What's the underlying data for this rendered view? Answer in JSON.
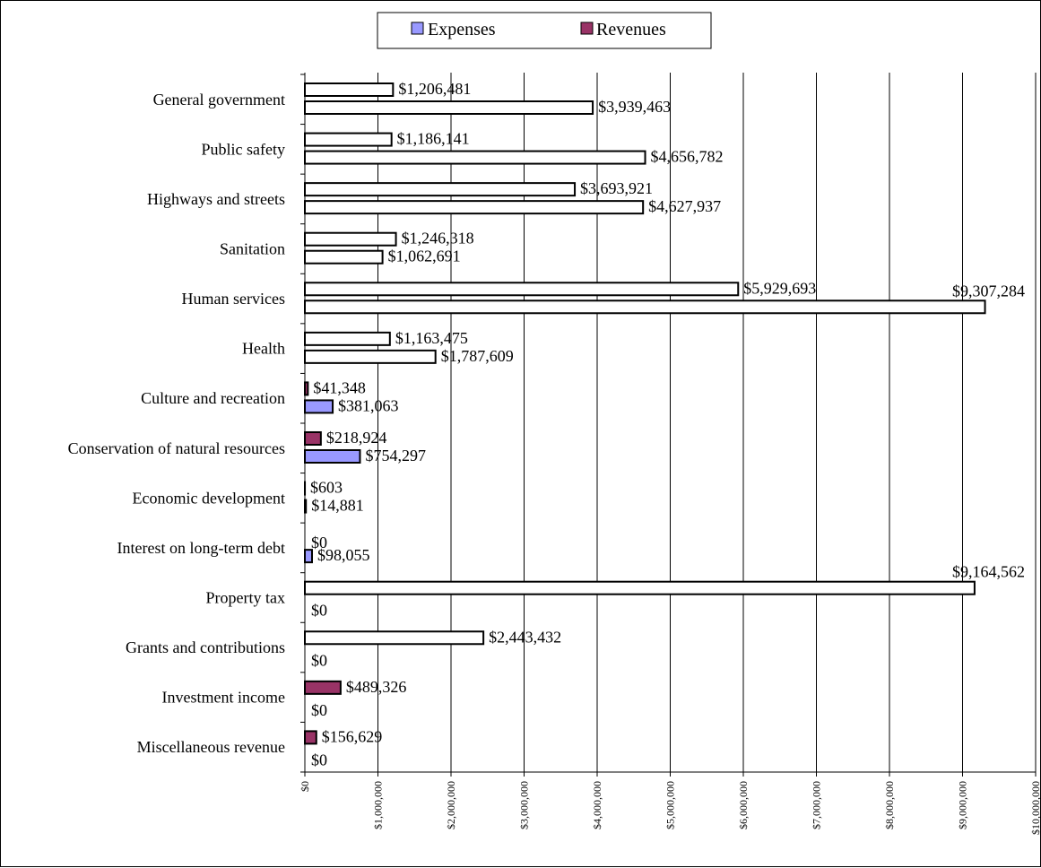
{
  "chart_data": {
    "type": "bar",
    "orientation": "horizontal",
    "categories": [
      "General government",
      "Public safety",
      "Highways and streets",
      "Sanitation",
      "Human services",
      "Health",
      "Culture and recreation",
      "Conservation of natural resources",
      "Economic development",
      "Interest on long-term debt",
      "Property tax",
      "Grants and contributions",
      "Investment income",
      "Miscellaneous revenue"
    ],
    "series": [
      {
        "name": "Revenues",
        "color": "#993366",
        "values": [
          1206481,
          1186141,
          3693921,
          1246318,
          5929693,
          1163475,
          41348,
          218924,
          603,
          0,
          9164562,
          2443432,
          489326,
          156629
        ],
        "labels": [
          "$1,206,481",
          "$1,186,141",
          "$3,693,921",
          "$1,246,318",
          "$5,929,693",
          "$1,163,475",
          "$41,348",
          "$218,924",
          "$603",
          "$0",
          "$9,164,562",
          "$2,443,432",
          "$489,326",
          "$156,629"
        ]
      },
      {
        "name": "Expenses",
        "color": "#9999ff",
        "values": [
          3939463,
          4656782,
          4627937,
          1062691,
          9307284,
          1787609,
          381063,
          754297,
          14881,
          98055,
          0,
          0,
          0,
          0
        ],
        "labels": [
          "$3,939,463",
          "$4,656,782",
          "$4,627,937",
          "$1,062,691",
          "$9,307,284",
          "$1,787,609",
          "$381,063",
          "$754,297",
          "$14,881",
          "$98,055",
          "$0",
          "$0",
          "$0",
          "$0"
        ]
      }
    ],
    "hollow_rows": [
      0,
      1,
      2,
      3,
      4,
      5,
      10,
      11
    ],
    "xlim": [
      0,
      10000000
    ],
    "x_ticks": [
      "$0",
      "$1,000,000",
      "$2,000,000",
      "$3,000,000",
      "$4,000,000",
      "$5,000,000",
      "$6,000,000",
      "$7,000,000",
      "$8,000,000",
      "$9,000,000",
      "$10,000,000"
    ],
    "grid": "vertical",
    "legend": {
      "position": "top",
      "items": [
        {
          "name": "Expenses",
          "color": "#9999ff"
        },
        {
          "name": "Revenues",
          "color": "#993366"
        }
      ]
    }
  }
}
